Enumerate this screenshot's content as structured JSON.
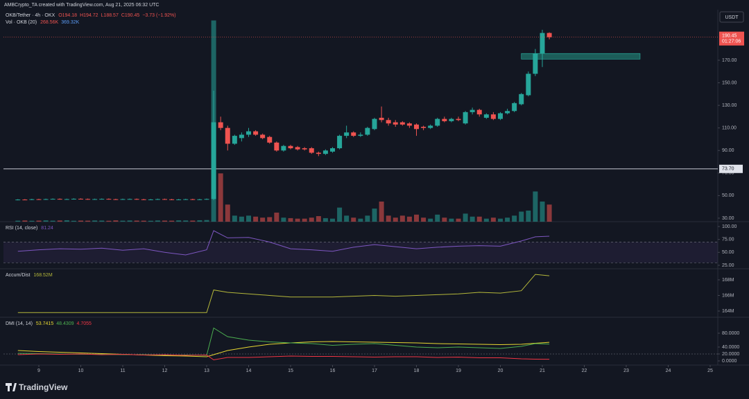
{
  "header": {
    "attribution": "AMBCrypto_TA created with TradingView.com, Aug 21, 2025 06:32 UTC",
    "currency": "USDT"
  },
  "footer": {
    "logo": "TradingView"
  },
  "chart_data": [
    {
      "type": "candlestick",
      "title": "OKB/Tether · 4h · OKX",
      "legend_values": [
        "O194.18",
        "H194.72",
        "L188.57",
        "C190.45",
        "−3.73 (−1.92%)"
      ],
      "volume_title": "Vol · OKB (20)",
      "volume_legend_values": [
        "268.56K",
        "369.32K"
      ],
      "up_color": "#26a69a",
      "down_color": "#ef5350",
      "x": [
        8.5,
        8.667,
        8.833,
        9,
        9.167,
        9.333,
        9.5,
        9.667,
        9.833,
        10,
        10.167,
        10.333,
        10.5,
        10.667,
        10.833,
        11,
        11.167,
        11.333,
        11.5,
        11.667,
        11.833,
        12,
        12.167,
        12.333,
        12.5,
        12.667,
        12.833,
        13,
        13.167,
        13.333,
        13.5,
        13.667,
        13.833,
        14,
        14.167,
        14.333,
        14.5,
        14.667,
        14.833,
        15,
        15.167,
        15.333,
        15.5,
        15.667,
        15.833,
        16,
        16.167,
        16.333,
        16.5,
        16.667,
        16.833,
        17,
        17.167,
        17.333,
        17.5,
        17.667,
        17.833,
        18,
        18.167,
        18.333,
        18.5,
        18.667,
        18.833,
        19,
        19.167,
        19.333,
        19.5,
        19.667,
        19.833,
        20,
        20.167,
        20.333,
        20.5,
        20.667,
        20.833,
        21,
        21.167
      ],
      "open": [
        46.2,
        46.5,
        46.4,
        46.8,
        46.6,
        46.9,
        47.1,
        46.8,
        46.9,
        47.2,
        47.0,
        46.7,
        46.9,
        47.1,
        46.8,
        46.6,
        46.9,
        47.0,
        46.7,
        46.5,
        46.6,
        46.9,
        46.7,
        46.4,
        46.6,
        46.8,
        46.5,
        46.7,
        47,
        115,
        110,
        96,
        101,
        104,
        107,
        104,
        102,
        97,
        90,
        94,
        93,
        92,
        92,
        88,
        87,
        89,
        92,
        103,
        106,
        103,
        104,
        109,
        119,
        117,
        115,
        115,
        114,
        113,
        111,
        110,
        112,
        118,
        116,
        118,
        114,
        124,
        126,
        119,
        122,
        118,
        123,
        125,
        131,
        139,
        158,
        176,
        194.18
      ],
      "high": [
        46.9,
        46.9,
        47.2,
        47.2,
        47.3,
        47.5,
        47.5,
        47.3,
        47.6,
        47.6,
        47.4,
        47.3,
        47.5,
        47.5,
        47.2,
        47.3,
        47.4,
        47.4,
        47.1,
        47,
        47.3,
        47.3,
        47.1,
        47,
        47.2,
        47.2,
        47.1,
        47.4,
        143,
        120,
        112,
        104,
        106,
        110,
        108,
        105,
        103,
        98,
        95,
        95,
        94,
        93,
        93,
        89,
        91,
        93,
        104,
        112,
        107,
        106,
        111,
        119,
        129,
        119,
        117,
        116,
        115,
        114,
        112,
        113,
        119,
        120,
        119,
        120,
        125,
        128,
        127,
        123,
        124,
        124,
        127,
        133,
        141,
        160,
        180,
        197,
        194.72
      ],
      "low": [
        45.8,
        46,
        46,
        46.2,
        46.2,
        46.5,
        46.4,
        46.4,
        46.5,
        46.6,
        46.3,
        46.3,
        46.5,
        46.4,
        46.2,
        46.2,
        46.5,
        46.3,
        46.1,
        46.1,
        46.2,
        46.3,
        46,
        46,
        46.2,
        46.1,
        46.1,
        46.3,
        46,
        108,
        90,
        95,
        98,
        102,
        103,
        100,
        96,
        89,
        89,
        91,
        90,
        90,
        87,
        85,
        86,
        88,
        91,
        101,
        102,
        102,
        103,
        108,
        115,
        112,
        111,
        112,
        110,
        103,
        108,
        109,
        111,
        115,
        115,
        116,
        113,
        122,
        120,
        118,
        117,
        117,
        122,
        124,
        130,
        138,
        156,
        164,
        188.57
      ],
      "close": [
        46.5,
        46.4,
        46.8,
        46.6,
        46.9,
        47.1,
        46.8,
        46.9,
        47.2,
        47.0,
        46.7,
        46.9,
        47.1,
        46.8,
        46.6,
        46.9,
        47.0,
        46.7,
        46.5,
        46.6,
        46.9,
        46.7,
        46.4,
        46.6,
        46.8,
        46.5,
        46.7,
        47.0,
        115,
        110,
        96,
        103,
        104,
        107,
        104,
        101,
        97,
        90,
        94,
        92,
        91,
        91,
        88,
        87,
        90,
        92,
        103,
        106,
        103,
        104,
        110,
        118,
        117,
        114,
        113,
        113,
        112,
        109,
        110,
        112,
        118,
        116,
        118,
        117,
        124,
        126,
        122,
        122,
        118,
        123,
        125,
        132,
        140,
        158,
        176,
        194.18,
        190.45
      ],
      "volume": [
        10,
        12,
        9,
        11,
        13,
        10,
        12,
        14,
        9,
        11,
        10,
        12,
        11,
        9,
        13,
        10,
        12,
        11,
        10,
        9,
        12,
        11,
        10,
        13,
        12,
        11,
        14,
        16,
        2000,
        480,
        170,
        60,
        50,
        60,
        50,
        40,
        45,
        90,
        40,
        35,
        30,
        30,
        40,
        55,
        35,
        30,
        140,
        60,
        40,
        30,
        60,
        130,
        200,
        60,
        40,
        60,
        50,
        70,
        40,
        30,
        70,
        40,
        30,
        30,
        80,
        50,
        50,
        30,
        40,
        30,
        40,
        60,
        100,
        110,
        300,
        200,
        170
      ],
      "volume_ylim": [
        0,
        2100
      ],
      "xlim": [
        8.157,
        25.182
      ],
      "xticks": [
        9,
        10,
        11,
        12,
        13,
        14,
        15,
        16,
        17,
        18,
        19,
        20,
        21,
        22,
        23,
        24,
        25
      ],
      "ylim": [
        26.9,
        214.2
      ],
      "yticks": [
        {
          "value": 30,
          "label": "30.00"
        },
        {
          "value": 50,
          "label": "50.00"
        },
        {
          "value": 70,
          "label": "70.00"
        },
        {
          "value": 90,
          "label": "90.00"
        },
        {
          "value": 110,
          "label": "110.00"
        },
        {
          "value": 130,
          "label": "130.00"
        },
        {
          "value": 150,
          "label": "150.00"
        },
        {
          "value": 170,
          "label": "170.00"
        }
      ],
      "price_line": {
        "value": 73.7,
        "label": "73.70"
      },
      "last_label": {
        "value": 190.45,
        "label": "190.45"
      },
      "countdown": "01:27:06",
      "zone": {
        "x": [
          20.5,
          23.33
        ],
        "y": [
          171,
          176
        ],
        "color": "#1f6f68"
      }
    },
    {
      "type": "line",
      "title": "RSI (14, close)",
      "legend_values": [
        "81.24"
      ],
      "x": [
        8.5,
        9,
        9.5,
        10,
        10.5,
        11,
        11.5,
        12,
        12.5,
        13,
        13.167,
        13.5,
        14,
        14.5,
        15,
        15.5,
        16,
        16.5,
        17,
        17.5,
        18,
        18.5,
        19,
        19.5,
        20,
        20.5,
        20.833,
        21.167
      ],
      "series": [
        {
          "color": "#7e57c2",
          "values": [
            52,
            55,
            57,
            56,
            58,
            54,
            57,
            50,
            45,
            55,
            92,
            78,
            79,
            70,
            57,
            55,
            52,
            60,
            65,
            61,
            57,
            60,
            62,
            63,
            62,
            72,
            80,
            81.24
          ]
        }
      ],
      "ylim": [
        19.6,
        106.7
      ],
      "yticks": [
        {
          "value": 25,
          "label": "25.00"
        },
        {
          "value": 50,
          "label": "50.00"
        },
        {
          "value": 75,
          "label": "75.00"
        },
        {
          "value": 100,
          "label": "100.00"
        }
      ],
      "bands": [
        30,
        70
      ]
    },
    {
      "type": "line",
      "title": "Accum/Dist",
      "legend_values": [
        "168.52M"
      ],
      "x": [
        8.5,
        9,
        9.5,
        10,
        10.5,
        11,
        11.5,
        12,
        12.5,
        13,
        13.167,
        13.5,
        14,
        14.5,
        15,
        15.5,
        16,
        16.5,
        17,
        17.5,
        18,
        18.5,
        19,
        19.5,
        20,
        20.5,
        20.833,
        21.167
      ],
      "series": [
        {
          "color": "#b5b83a",
          "values": [
            163.8,
            163.8,
            163.8,
            163.8,
            163.8,
            163.8,
            163.8,
            163.8,
            163.8,
            163.8,
            166.7,
            166.4,
            166.2,
            166.0,
            165.8,
            165.8,
            165.8,
            165.9,
            166.0,
            165.9,
            166.0,
            166.1,
            166.2,
            166.4,
            166.3,
            166.6,
            168.7,
            168.52
          ]
        }
      ],
      "ylim": [
        163.47,
        169.24
      ],
      "yticks": [
        {
          "value": 164,
          "label": "164M"
        },
        {
          "value": 166,
          "label": "166M"
        },
        {
          "value": 168,
          "label": "168M"
        }
      ]
    },
    {
      "type": "line",
      "title": "DMI (14, 14)",
      "legend_values": [
        "53.7415",
        "48.4309",
        "4.7055"
      ],
      "x": [
        8.5,
        9,
        9.5,
        10,
        10.5,
        11,
        11.5,
        12,
        12.5,
        13,
        13.167,
        13.5,
        14,
        14.5,
        15,
        15.5,
        16,
        16.5,
        17,
        17.5,
        18,
        18.5,
        19,
        19.5,
        20,
        20.5,
        20.833,
        21.167
      ],
      "series": [
        {
          "color": "#e8d831",
          "values": [
            30,
            27,
            25,
            23,
            21,
            19,
            17,
            15,
            14,
            12,
            18,
            30,
            40,
            48,
            52,
            55,
            56,
            55,
            54,
            53,
            52,
            50,
            49,
            48,
            47,
            48,
            51,
            53.7415
          ]
        },
        {
          "color": "#4caf50",
          "values": [
            22,
            21,
            20,
            19,
            19,
            18,
            18,
            17,
            17,
            16,
            95,
            70,
            60,
            55,
            52,
            50,
            45,
            48,
            50,
            45,
            40,
            38,
            40,
            38,
            36,
            42,
            50,
            48.4309
          ]
        },
        {
          "color": "#f23645",
          "values": [
            18,
            20,
            19,
            20,
            18,
            19,
            17,
            18,
            16,
            17,
            3,
            10,
            10,
            12,
            14,
            13,
            13,
            12,
            11,
            12,
            12,
            10,
            11,
            9,
            9,
            6,
            5,
            4.7055
          ]
        }
      ],
      "ylim": [
        -12,
        122
      ],
      "yticks": [
        {
          "value": 0,
          "label": "0.0000"
        },
        {
          "value": 20,
          "label": "20.0000"
        },
        {
          "value": 40,
          "label": "40.0000"
        },
        {
          "value": 80,
          "label": "80.0000"
        }
      ],
      "hline": 20
    }
  ]
}
